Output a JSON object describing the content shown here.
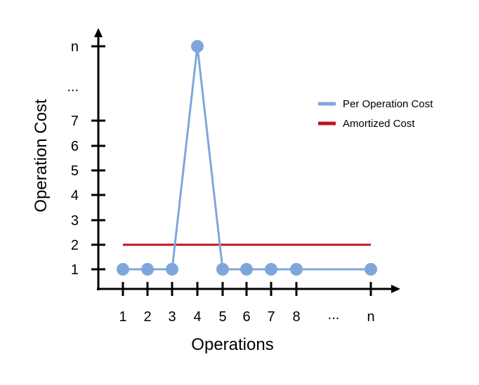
{
  "chart_data": {
    "type": "line",
    "xlabel": "Operations",
    "ylabel": "Operation Cost",
    "x_ticks": [
      "1",
      "2",
      "3",
      "4",
      "5",
      "6",
      "7",
      "8",
      "...",
      "n"
    ],
    "y_ticks": [
      "1",
      "2",
      "3",
      "4",
      "5",
      "6",
      "7",
      "...",
      "n"
    ],
    "series": [
      {
        "name": "Per Operation Cost",
        "type": "line",
        "color": "#7fa6dc",
        "x": [
          "1",
          "2",
          "3",
          "4",
          "5",
          "6",
          "7",
          "8",
          "n"
        ],
        "y": [
          "1",
          "1",
          "1",
          "n",
          "1",
          "1",
          "1",
          "1",
          "1"
        ]
      },
      {
        "name": "Amortized Cost",
        "type": "line",
        "color": "#c0131d",
        "x": [
          "1",
          "n"
        ],
        "y": [
          "2",
          "2"
        ]
      }
    ],
    "legend": "right",
    "grid": false
  }
}
